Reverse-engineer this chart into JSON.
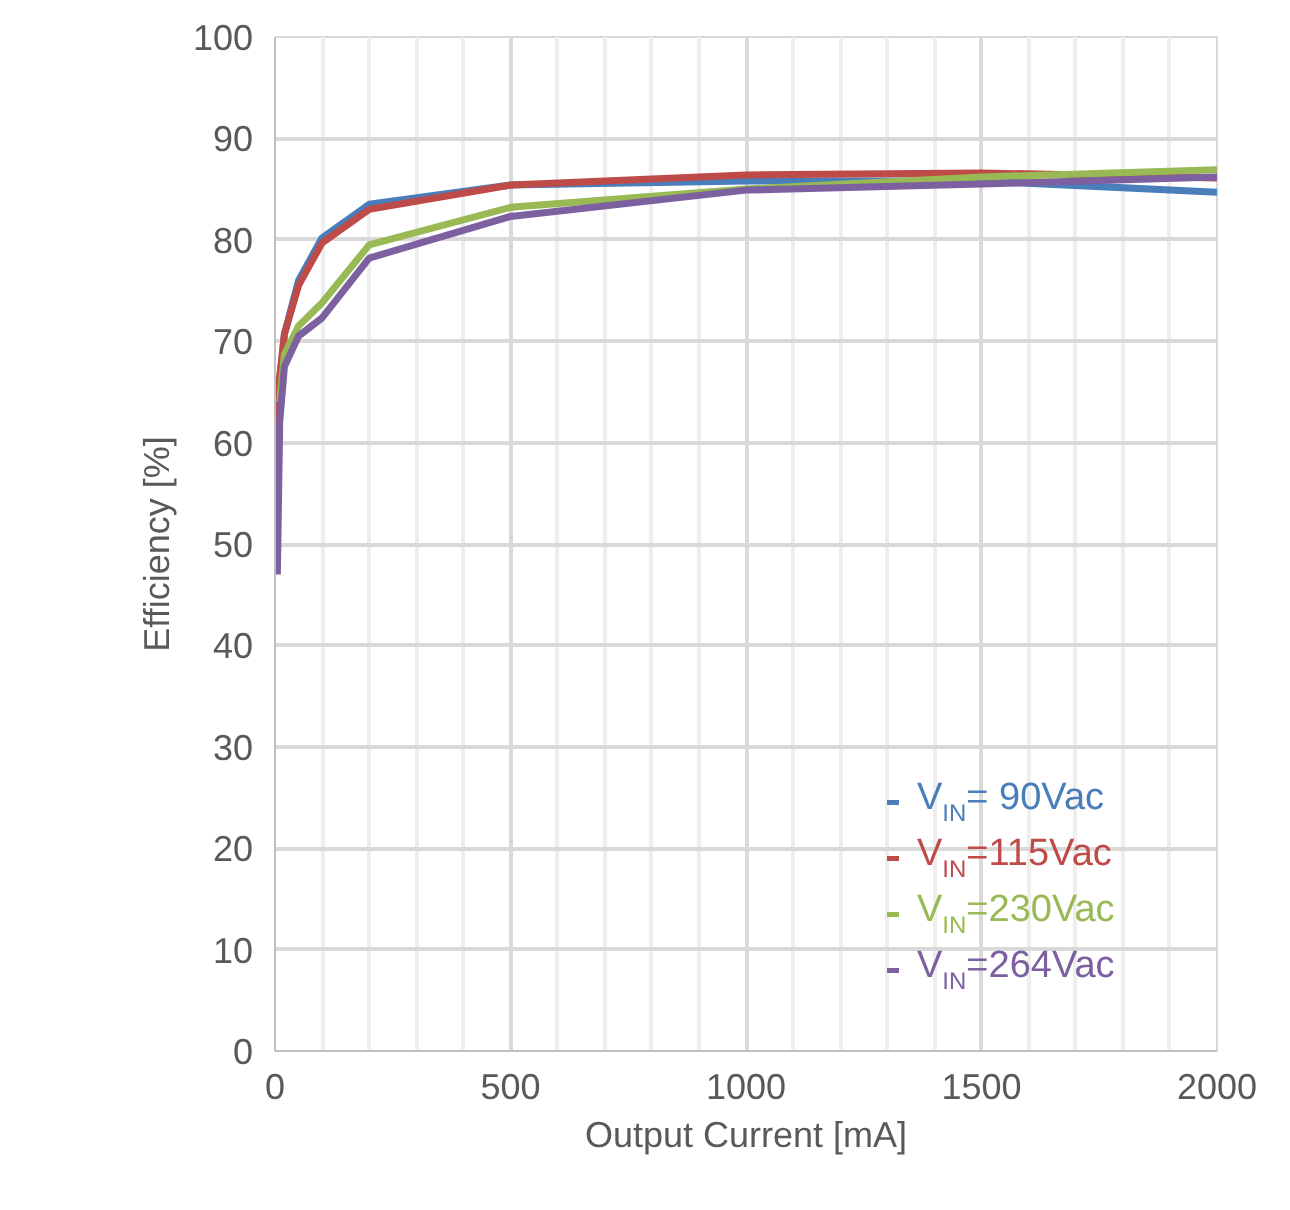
{
  "chart_data": {
    "type": "line",
    "xlabel": "Output Current [mA]",
    "ylabel": "Efficiency [%]",
    "xlim": [
      0,
      2000
    ],
    "xticks": [
      0,
      500,
      1000,
      1500,
      2000
    ],
    "ylim": [
      0,
      100
    ],
    "yticks": [
      0,
      10,
      20,
      30,
      40,
      50,
      60,
      70,
      80,
      90,
      100
    ],
    "grid": true,
    "legend": "bottom right",
    "marker": "none",
    "line_style": "solid",
    "series": [
      {
        "name": "V$_{IN}$=  90Vac",
        "color": "#4a7ebb",
        "x": [
          5,
          10,
          20,
          50,
          100,
          200,
          500,
          1000,
          1500,
          2000
        ],
        "values": [
          60,
          66,
          70.7,
          76,
          80.2,
          83.5,
          85.4,
          85.8,
          85.8,
          84.7
        ]
      },
      {
        "name": "V$_{IN}$=115Vac",
        "color": "#be4b48",
        "x": [
          5,
          10,
          20,
          50,
          100,
          200,
          500,
          1000,
          1500,
          2000
        ],
        "values": [
          61,
          66.5,
          70.7,
          75.5,
          79.7,
          83.0,
          85.4,
          86.4,
          86.6,
          86.1
        ]
      },
      {
        "name": "V$_{IN}$=230Vac",
        "color": "#98b954",
        "x": [
          10,
          20,
          50,
          100,
          200,
          500,
          1000,
          1500,
          2000
        ],
        "values": [
          64,
          68.7,
          71.5,
          73.8,
          79.5,
          83.2,
          85.0,
          86.2,
          86.9
        ]
      },
      {
        "name": "V$_{IN}$=264Vac",
        "color": "#7d60a0",
        "x": [
          5,
          10,
          20,
          50,
          100,
          200,
          500,
          1000,
          1500,
          2000
        ],
        "values": [
          47,
          62,
          67.5,
          70.5,
          72.3,
          78.2,
          82.3,
          84.9,
          85.5,
          86.2
        ]
      }
    ]
  }
}
